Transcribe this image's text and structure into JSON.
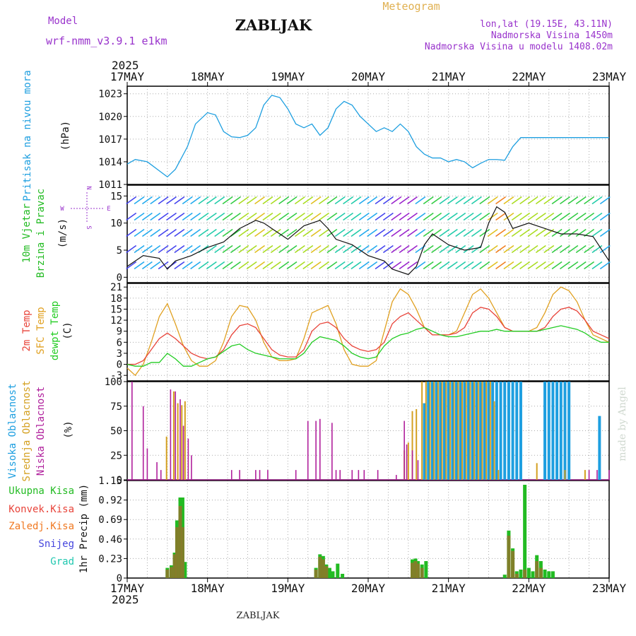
{
  "header": {
    "model_label": "Model",
    "model_name": "wrf-nmm_v3.9.1  e1km",
    "station": "ZABLJAK",
    "product": "Meteogram",
    "coords": "lon,lat (19.15E, 43.11N)",
    "elevation": "Nadmorska Visina 1450m",
    "model_elevation": "Nadmorska Visina u modelu 1408.02m",
    "footer_station": "ZABLJAK",
    "credit": "made by Angel"
  },
  "colors": {
    "pressure": "#1e9fe0",
    "wind_label": "#22bb22",
    "t2m": "#e8443a",
    "sfc": "#e0a020",
    "dewpt": "#22cc22",
    "cloud_high": "#1e9fe0",
    "cloud_mid": "#d4a020",
    "cloud_low": "#b0209c",
    "purple": "#9933cc"
  },
  "chart_data": [
    {
      "type": "line",
      "panel": "pressure",
      "ylabel_side": "Pritisak na nivou mora",
      "ylabel_unit": "(hPa)",
      "ylim": [
        1011,
        1024
      ],
      "yticks": [
        1011,
        1014,
        1017,
        1020,
        1023
      ],
      "x_range": [
        0,
        6
      ],
      "year": "2025",
      "day_labels": [
        "17MAY",
        "18MAY",
        "19MAY",
        "20MAY",
        "21MAY",
        "22MAY",
        "23MAY"
      ],
      "series": [
        {
          "x": [
            0,
            0.1,
            0.25,
            0.4,
            0.5,
            0.6,
            0.75,
            0.85,
            1.0,
            1.1,
            1.2,
            1.3,
            1.4,
            1.5,
            1.6,
            1.7,
            1.8,
            1.9,
            2.0,
            2.1,
            2.2,
            2.3,
            2.4,
            2.5,
            2.6,
            2.7,
            2.8,
            2.9,
            3.0,
            3.1,
            3.2,
            3.3,
            3.4,
            3.5,
            3.6,
            3.7,
            3.8,
            3.9,
            4.0,
            4.1,
            4.2,
            4.3,
            4.4,
            4.5,
            4.6,
            4.7,
            4.8,
            4.9,
            5.0,
            5.1,
            5.2,
            5.3,
            5.4,
            5.5,
            5.6,
            5.7,
            5.8,
            5.9,
            6.0
          ],
          "values": [
            1013.7,
            1014.3,
            1014.0,
            1012.8,
            1012.0,
            1013.0,
            1016.0,
            1019.0,
            1020.5,
            1020.2,
            1018.0,
            1017.3,
            1017.2,
            1017.5,
            1018.5,
            1021.5,
            1022.8,
            1022.5,
            1021.0,
            1019.0,
            1018.5,
            1019.0,
            1017.5,
            1018.5,
            1021.0,
            1022.0,
            1021.5,
            1020.0,
            1019.0,
            1018.0,
            1018.5,
            1018.0,
            1019.0,
            1018.0,
            1016.0,
            1015.0,
            1014.5,
            1014.5,
            1014.0,
            1014.3,
            1014.0,
            1013.2,
            1013.8,
            1014.3,
            1014.3,
            1014.2,
            1016.0,
            1017.2,
            1017.2,
            1017.2,
            1017.2,
            1017.2,
            1017.2,
            1017.2,
            1017.2,
            1017.2,
            1017.2,
            1017.2,
            1017.2
          ]
        }
      ]
    },
    {
      "type": "line",
      "panel": "wind",
      "ylabel_side_1": "10m Vjetar",
      "ylabel_side_2": "Brzina i Pravac",
      "ylabel_unit": "(m/s)",
      "compass_n": "N",
      "compass_w": "W",
      "compass_e": "E",
      "compass_s": "S",
      "ylim": [
        -1,
        17
      ],
      "yticks": [
        0,
        5,
        10,
        15
      ],
      "series": [
        {
          "name": "speed",
          "x": [
            0,
            0.2,
            0.4,
            0.5,
            0.6,
            0.8,
            1.0,
            1.2,
            1.4,
            1.6,
            1.7,
            1.8,
            2.0,
            2.2,
            2.4,
            2.5,
            2.6,
            2.8,
            3.0,
            3.2,
            3.3,
            3.5,
            3.6,
            3.7,
            3.8,
            4.0,
            4.2,
            4.4,
            4.5,
            4.6,
            4.7,
            4.8,
            5.0,
            5.2,
            5.4,
            5.6,
            5.8,
            6.0
          ],
          "values": [
            2,
            4,
            3.5,
            1.5,
            3,
            4,
            5.5,
            6.5,
            9,
            10.5,
            10,
            9,
            7,
            9.5,
            10.5,
            9,
            7,
            6,
            4,
            3,
            1.5,
            0.5,
            2,
            6,
            8,
            6,
            5,
            5.5,
            10,
            13,
            12,
            9,
            10,
            9,
            8,
            8,
            7.5,
            3
          ]
        }
      ]
    },
    {
      "type": "line",
      "panel": "temperature",
      "ylabel_side_1": "2m Temp",
      "ylabel_side_2": "SFC Temp",
      "ylabel_side_3": "dewpt Temp",
      "ylabel_unit": "(C)",
      "ylim": [
        -4.5,
        22
      ],
      "yticks": [
        -3,
        0,
        3,
        6,
        9,
        12,
        15,
        18,
        21
      ],
      "series": [
        {
          "name": "2m Temp",
          "x": [
            0,
            0.1,
            0.2,
            0.3,
            0.4,
            0.5,
            0.6,
            0.7,
            0.8,
            0.9,
            1.0,
            1.1,
            1.2,
            1.3,
            1.4,
            1.5,
            1.6,
            1.7,
            1.8,
            1.9,
            2.0,
            2.1,
            2.2,
            2.3,
            2.4,
            2.5,
            2.6,
            2.7,
            2.8,
            2.9,
            3.0,
            3.1,
            3.2,
            3.3,
            3.4,
            3.5,
            3.6,
            3.7,
            3.8,
            3.9,
            4.0,
            4.1,
            4.2,
            4.3,
            4.4,
            4.5,
            4.6,
            4.7,
            4.8,
            4.9,
            5.0,
            5.1,
            5.2,
            5.3,
            5.4,
            5.5,
            5.6,
            5.7,
            5.8,
            5.9,
            6.0
          ],
          "values": [
            0,
            0,
            1,
            4,
            7,
            8.5,
            7,
            5,
            3,
            2,
            1.5,
            2,
            4,
            8,
            10.5,
            11,
            10,
            7,
            4,
            2.5,
            2,
            2,
            4,
            9,
            11,
            11.5,
            10,
            7,
            5,
            4,
            3.5,
            4,
            6,
            11,
            13,
            14,
            12,
            10,
            8,
            8,
            8,
            8.5,
            10,
            14,
            15.5,
            15,
            13,
            10,
            9,
            9,
            9,
            9,
            10,
            13,
            15,
            15.5,
            14.5,
            12,
            9,
            8,
            7
          ]
        },
        {
          "name": "SFC Temp",
          "x": [
            0,
            0.1,
            0.2,
            0.3,
            0.4,
            0.5,
            0.6,
            0.7,
            0.8,
            0.9,
            1.0,
            1.1,
            1.2,
            1.3,
            1.4,
            1.5,
            1.6,
            1.7,
            1.8,
            1.9,
            2.0,
            2.1,
            2.2,
            2.3,
            2.4,
            2.5,
            2.6,
            2.7,
            2.8,
            2.9,
            3.0,
            3.1,
            3.2,
            3.3,
            3.4,
            3.5,
            3.6,
            3.7,
            3.8,
            3.9,
            4.0,
            4.1,
            4.2,
            4.3,
            4.4,
            4.5,
            4.6,
            4.7,
            4.8,
            4.9,
            5.0,
            5.1,
            5.2,
            5.3,
            5.4,
            5.5,
            5.6,
            5.7,
            5.8,
            5.9,
            6.0
          ],
          "values": [
            -1,
            -3,
            0,
            6,
            13,
            16.5,
            11,
            5,
            1,
            -0.5,
            -0.5,
            1,
            6,
            13,
            16,
            15.5,
            12,
            6,
            2,
            1,
            1,
            1.5,
            7,
            14,
            15,
            16,
            11,
            4,
            0,
            -0.5,
            -0.5,
            1,
            9,
            17,
            20.5,
            19,
            15,
            10,
            8,
            8,
            8,
            9,
            14,
            19,
            20.5,
            18,
            14,
            10,
            9,
            9,
            9,
            10,
            14,
            19,
            21,
            20,
            17,
            12,
            8,
            7,
            6
          ]
        },
        {
          "name": "dewpt Temp",
          "x": [
            0,
            0.1,
            0.2,
            0.3,
            0.4,
            0.5,
            0.6,
            0.7,
            0.8,
            0.9,
            1.0,
            1.1,
            1.2,
            1.3,
            1.4,
            1.5,
            1.6,
            1.7,
            1.8,
            1.9,
            2.0,
            2.1,
            2.2,
            2.3,
            2.4,
            2.5,
            2.6,
            2.7,
            2.8,
            2.9,
            3.0,
            3.1,
            3.2,
            3.3,
            3.4,
            3.5,
            3.6,
            3.7,
            3.8,
            3.9,
            4.0,
            4.1,
            4.2,
            4.3,
            4.4,
            4.5,
            4.6,
            4.7,
            4.8,
            4.9,
            5.0,
            5.1,
            5.2,
            5.3,
            5.4,
            5.5,
            5.6,
            5.7,
            5.8,
            5.9,
            6.0
          ],
          "values": [
            0,
            -0.5,
            -0.5,
            0.5,
            0.5,
            3,
            1.5,
            -0.5,
            -0.5,
            0.5,
            1.5,
            2,
            3.5,
            5,
            5.5,
            4,
            3,
            2.5,
            2,
            1.5,
            1.5,
            1.5,
            3,
            6,
            7.5,
            7,
            6.5,
            5,
            3,
            2,
            1.5,
            2,
            5,
            7,
            8,
            8.5,
            9.5,
            10,
            9,
            8,
            7.5,
            7.5,
            8,
            8.5,
            9,
            9,
            9.5,
            9,
            9,
            9,
            9,
            9,
            9.5,
            10,
            10.5,
            10,
            9.5,
            8.5,
            7,
            6,
            6
          ]
        }
      ]
    },
    {
      "type": "bar",
      "panel": "clouds",
      "ylabel_side_1": "Visoka Oblacnost",
      "ylabel_side_2": "Srednja Oblacnost",
      "ylabel_side_3": "Niska Oblacnost",
      "ylabel_unit": "(%)",
      "ylim": [
        0,
        100
      ],
      "yticks": [
        0,
        25,
        50,
        75,
        100
      ],
      "series": [
        {
          "name": "Visoka Oblacnost",
          "x": [
            3.7,
            3.75,
            3.8,
            3.85,
            3.9,
            3.95,
            4.0,
            4.05,
            4.1,
            4.15,
            4.2,
            4.25,
            4.3,
            4.35,
            4.4,
            4.45,
            4.5,
            4.55,
            4.6,
            4.65,
            4.7,
            4.75,
            4.8,
            4.85,
            4.9,
            5.2,
            5.25,
            5.3,
            5.35,
            5.4,
            5.45,
            5.5,
            5.88
          ],
          "values": [
            78,
            100,
            100,
            100,
            100,
            100,
            100,
            100,
            100,
            100,
            100,
            100,
            100,
            100,
            100,
            100,
            100,
            100,
            100,
            100,
            100,
            100,
            100,
            100,
            100,
            100,
            100,
            100,
            100,
            100,
            100,
            100,
            65
          ]
        },
        {
          "name": "Srednja Oblacnost",
          "x": [
            0.49,
            0.58,
            0.63,
            0.68,
            0.72,
            3.45,
            3.5,
            3.55,
            3.6,
            3.67,
            3.72,
            3.77,
            3.82,
            3.87,
            3.92,
            3.97,
            4.02,
            4.07,
            4.12,
            4.17,
            4.22,
            4.27,
            4.32,
            4.37,
            4.42,
            4.47,
            4.52,
            4.57,
            4.62,
            5.1,
            5.45,
            5.7
          ],
          "values": [
            44,
            90,
            78,
            76,
            80,
            30,
            38,
            70,
            72,
            100,
            100,
            100,
            100,
            100,
            100,
            100,
            100,
            100,
            100,
            100,
            100,
            100,
            100,
            100,
            100,
            100,
            100,
            80,
            10,
            17,
            10,
            10
          ]
        },
        {
          "name": "Niska Oblacnost",
          "x": [
            0.06,
            0.2,
            0.25,
            0.37,
            0.42,
            0.54,
            0.6,
            0.66,
            0.7,
            0.76,
            0.8,
            1.3,
            1.4,
            1.6,
            1.65,
            1.75,
            2.1,
            2.25,
            2.35,
            2.4,
            2.55,
            2.6,
            2.65,
            2.8,
            2.88,
            2.95,
            3.12,
            3.35,
            3.45,
            3.48,
            3.55,
            3.62,
            5.75,
            5.85,
            6.0
          ],
          "values": [
            100,
            75,
            32,
            18,
            10,
            92,
            90,
            82,
            55,
            42,
            25,
            10,
            10,
            10,
            10,
            10,
            10,
            60,
            60,
            62,
            58,
            10,
            10,
            10,
            10,
            10,
            10,
            5,
            60,
            36,
            30,
            20,
            10,
            10,
            10
          ]
        }
      ]
    },
    {
      "type": "bar",
      "panel": "precipitation",
      "ylabel_left": "1hr Precip (mm)",
      "legend": [
        "Ukupna Kisa",
        "Konvek.Kisa",
        "Zaledj.Kisa",
        "Snijeg",
        "Grad"
      ],
      "legend_colors": [
        "#22bb22",
        "#e8443a",
        "#f07820",
        "#4444dd",
        "#22c8b0"
      ],
      "ylim": [
        0,
        1.15
      ],
      "yticks": [
        0,
        0.23,
        0.46,
        0.69,
        0.92,
        1.15
      ],
      "series": [
        {
          "name": "Ukupna Kisa",
          "x": [
            0.5,
            0.55,
            0.59,
            0.62,
            0.66,
            0.69,
            0.72,
            2.35,
            2.4,
            2.44,
            2.48,
            2.52,
            2.56,
            2.62,
            2.68,
            3.55,
            3.59,
            3.62,
            3.67,
            3.72,
            4.7,
            4.75,
            4.8,
            4.85,
            4.9,
            4.95,
            5.0,
            5.05,
            5.1,
            5.15,
            5.2,
            5.25,
            5.3
          ],
          "values": [
            0.12,
            0.15,
            0.3,
            0.68,
            0.95,
            0.95,
            0.19,
            0.12,
            0.28,
            0.26,
            0.16,
            0.12,
            0.08,
            0.17,
            0.05,
            0.22,
            0.23,
            0.2,
            0.16,
            0.2,
            0.04,
            0.56,
            0.35,
            0.08,
            0.1,
            1.1,
            0.12,
            0.08,
            0.27,
            0.2,
            0.1,
            0.08,
            0.08
          ]
        },
        {
          "name": "Konvek.Kisa",
          "x": [
            0.5,
            0.55,
            0.59,
            0.62,
            0.66,
            0.69,
            2.35,
            2.4,
            2.44,
            2.48,
            3.55,
            3.59,
            3.62,
            3.67,
            4.75,
            4.8,
            4.85,
            4.95,
            5.1,
            5.15
          ],
          "values": [
            0.1,
            0.13,
            0.28,
            0.6,
            0.85,
            0.6,
            0.1,
            0.25,
            0.22,
            0.14,
            0.18,
            0.2,
            0.17,
            0.12,
            0.5,
            0.32,
            0.05,
            0.1,
            0.2,
            0.12
          ]
        }
      ]
    }
  ]
}
